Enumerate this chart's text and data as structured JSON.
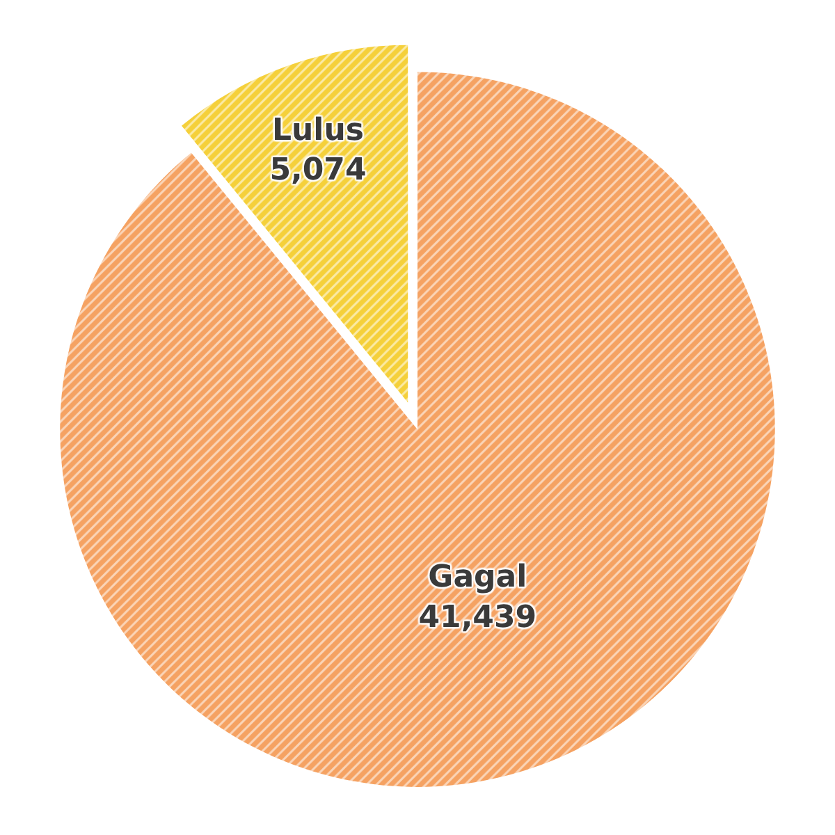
{
  "chart_data": {
    "type": "pie",
    "categories": [
      "Gagal",
      "Lulus"
    ],
    "values": [
      41439,
      5074
    ],
    "value_labels": [
      "41,439",
      "5,074"
    ],
    "colors": [
      "#f5a262",
      "#f5d03a"
    ],
    "legend": false
  }
}
